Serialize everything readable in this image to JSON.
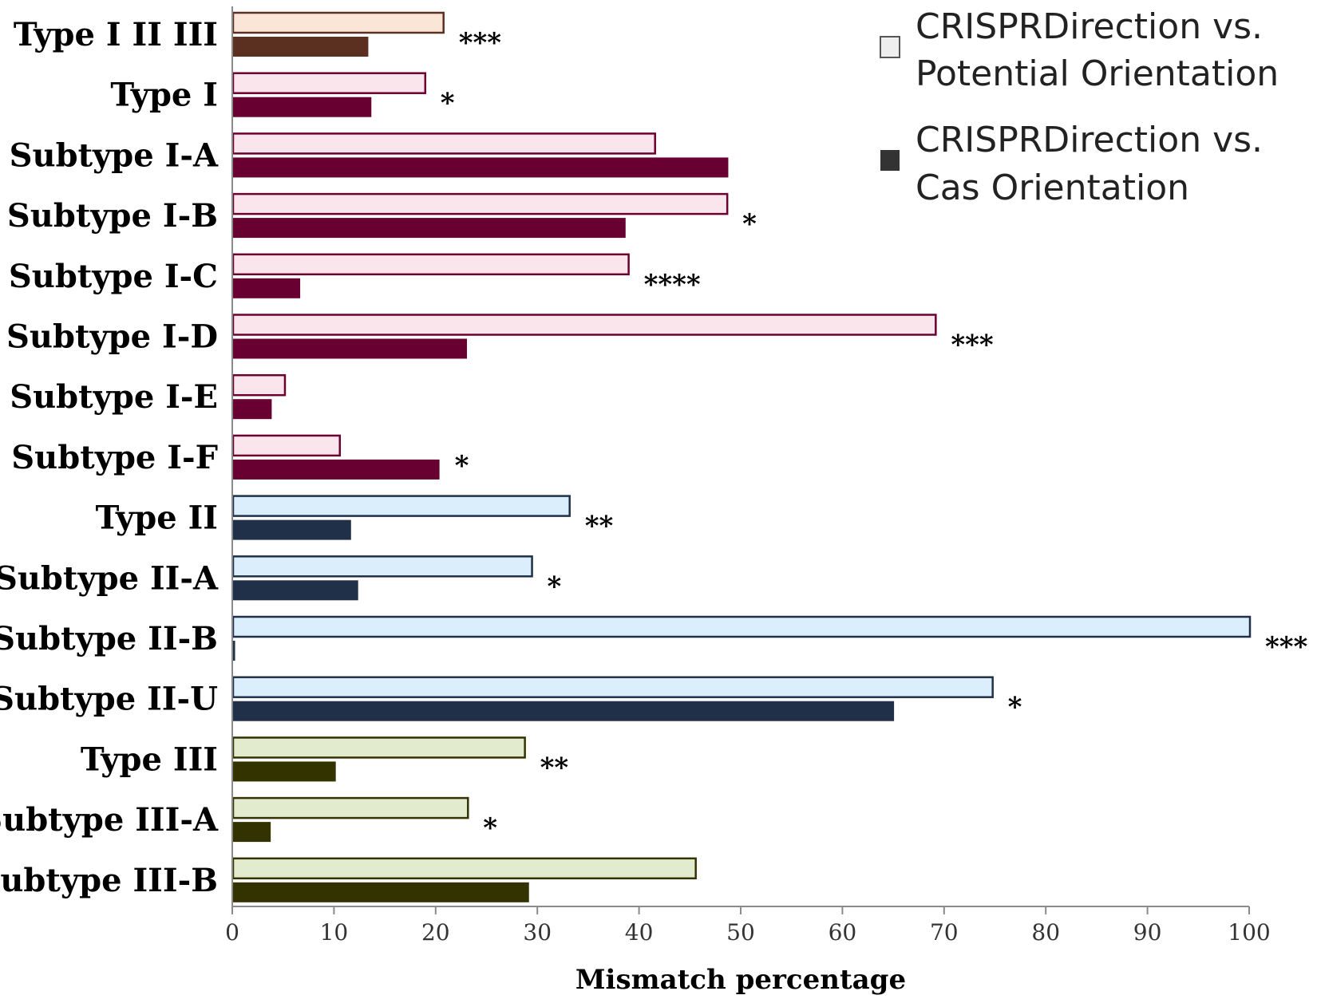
{
  "chart_data": {
    "type": "bar",
    "orientation": "horizontal",
    "title": "",
    "xlabel": "Mismatch percentage",
    "ylabel": "",
    "xlim": [
      0,
      100
    ],
    "xticks": [
      "0",
      "10",
      "20",
      "30",
      "40",
      "50",
      "60",
      "70",
      "80",
      "90",
      "100"
    ],
    "grid": false,
    "legend_position": "top-right",
    "categories": [
      "Type I II III",
      "Type I",
      "Subtype I-A",
      "Subtype I-B",
      "Subtype I-C",
      "Subtype I-D",
      "Subtype I-E",
      "Subtype I-F",
      "Type II",
      "Subtype II-A",
      "Subtype II-B",
      "Subtype II-U",
      "Type III",
      "Subtype III-A",
      "Subtype III-B"
    ],
    "series": [
      {
        "name": "CRISPRDirection vs. Potential Orientation",
        "legend_lines": [
          "CRISPRDirection vs.",
          "Potential Orientation"
        ],
        "values": [
          20.7,
          18.9,
          41.5,
          48.6,
          38.9,
          69.1,
          5.1,
          10.5,
          33.1,
          29.4,
          100,
          74.7,
          28.7,
          23.1,
          45.5
        ]
      },
      {
        "name": "CRISPRDirection vs. Cas Orientation",
        "legend_lines": [
          "CRISPRDirection vs.",
          "Cas Orientation"
        ],
        "values": [
          13.3,
          13.6,
          48.7,
          38.6,
          6.6,
          23.0,
          3.8,
          20.3,
          11.6,
          12.3,
          0.2,
          65.0,
          10.1,
          3.7,
          29.1
        ]
      }
    ],
    "significance": [
      "***",
      "*",
      "",
      "*",
      "****",
      "***",
      "",
      "*",
      "**",
      "*",
      "***",
      "*",
      "**",
      "*",
      ""
    ],
    "colors": {
      "potential_fill": [
        "#fbe5d6",
        "#fbe5ec",
        "#fbe5ec",
        "#fbe5ec",
        "#fbe5ec",
        "#fbe5ec",
        "#fbe5ec",
        "#fbe5ec",
        "#dbeefc",
        "#dbeefc",
        "#dbeefc",
        "#dbeefc",
        "#e2ebcd",
        "#e2ebcd",
        "#e2ebcd"
      ],
      "potential_stroke": [
        "#5c3020",
        "#6b0030",
        "#6b0030",
        "#6b0030",
        "#6b0030",
        "#6b0030",
        "#6b0030",
        "#6b0030",
        "#1f3048",
        "#1f3048",
        "#1f3048",
        "#1f3048",
        "#343300",
        "#343300",
        "#343300"
      ],
      "cas_fill": [
        "#5c3020",
        "#680032",
        "#680032",
        "#680032",
        "#680032",
        "#680032",
        "#680032",
        "#680032",
        "#1f3048",
        "#1f3048",
        "#1f3048",
        "#1f3048",
        "#333300",
        "#333300",
        "#333300"
      ],
      "legend_light": "#eeeeee",
      "legend_dark": "#333333"
    }
  }
}
